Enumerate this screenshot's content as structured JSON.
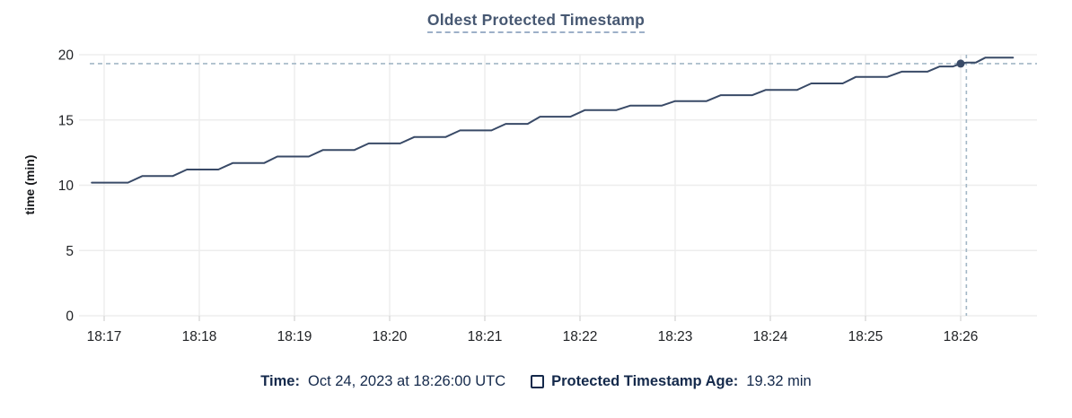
{
  "title": "Oldest Protected Timestamp",
  "legend": {
    "time_label": "Time:",
    "time_value": "Oct 24, 2023 at 18:26:00 UTC",
    "series_label": "Protected Timestamp Age:",
    "series_value": "19.32 min"
  },
  "colors": {
    "line": "#394a67",
    "title": "#475872",
    "legend_text": "#14294b",
    "crosshair": "#a3b7c6",
    "grid": "#ededed",
    "axis_text": "#1f2124"
  },
  "chart_data": {
    "type": "line",
    "title": "Oldest Protected Timestamp",
    "xlabel": "",
    "ylabel": "time (min)",
    "ylim": [
      0,
      20
    ],
    "yticks": [
      0,
      5,
      10,
      15,
      20
    ],
    "xticks": [
      "18:17",
      "18:18",
      "18:19",
      "18:20",
      "18:21",
      "18:22",
      "18:23",
      "18:24",
      "18:25",
      "18:26"
    ],
    "x_unit": "clock time (UTC), minutes after 18:00",
    "grid": true,
    "legend_position": "bottom",
    "series": [
      {
        "name": "Protected Timestamp Age",
        "points": [
          [
            16.87,
            10.2
          ],
          [
            17.25,
            10.2
          ],
          [
            17.4,
            10.7
          ],
          [
            17.72,
            10.7
          ],
          [
            17.87,
            11.2
          ],
          [
            18.2,
            11.2
          ],
          [
            18.35,
            11.7
          ],
          [
            18.68,
            11.7
          ],
          [
            18.82,
            12.2
          ],
          [
            19.15,
            12.2
          ],
          [
            19.3,
            12.7
          ],
          [
            19.63,
            12.7
          ],
          [
            19.78,
            13.2
          ],
          [
            20.11,
            13.2
          ],
          [
            20.26,
            13.7
          ],
          [
            20.59,
            13.7
          ],
          [
            20.74,
            14.2
          ],
          [
            21.07,
            14.2
          ],
          [
            21.22,
            14.7
          ],
          [
            21.45,
            14.7
          ],
          [
            21.58,
            15.25
          ],
          [
            21.9,
            15.25
          ],
          [
            22.05,
            15.75
          ],
          [
            22.38,
            15.75
          ],
          [
            22.53,
            16.1
          ],
          [
            22.86,
            16.1
          ],
          [
            23.0,
            16.45
          ],
          [
            23.33,
            16.45
          ],
          [
            23.48,
            16.9
          ],
          [
            23.81,
            16.9
          ],
          [
            23.95,
            17.3
          ],
          [
            24.28,
            17.3
          ],
          [
            24.43,
            17.8
          ],
          [
            24.76,
            17.8
          ],
          [
            24.9,
            18.3
          ],
          [
            25.23,
            18.3
          ],
          [
            25.38,
            18.7
          ],
          [
            25.65,
            18.7
          ],
          [
            25.78,
            19.1
          ],
          [
            25.92,
            19.1
          ],
          [
            26.0,
            19.32
          ],
          [
            26.06,
            19.4
          ],
          [
            26.16,
            19.4
          ],
          [
            26.26,
            19.78
          ],
          [
            26.55,
            19.78
          ]
        ]
      }
    ],
    "highlight": {
      "t": 26.0,
      "value": 19.32,
      "crosshair_t": 26.06,
      "time_label": "18:26:00",
      "value_label": "19.32 min"
    }
  }
}
